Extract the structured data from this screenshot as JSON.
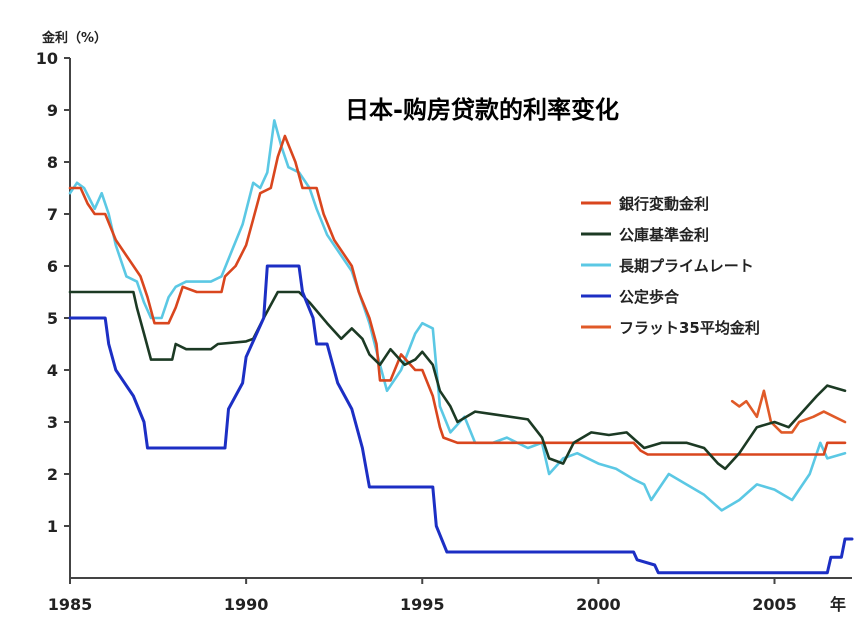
{
  "chart_data": {
    "type": "line",
    "title": "日本-购房贷款的利率变化",
    "ylabel": "金利（%）",
    "xlabel": "年",
    "xlim": [
      1985,
      2007.2
    ],
    "ylim": [
      0,
      10
    ],
    "x_ticks": [
      1985,
      1990,
      1995,
      2000,
      2005
    ],
    "x_tick_labels": [
      "1985",
      "1990",
      "1995",
      "2000",
      "2005"
    ],
    "y_ticks": [
      1,
      2,
      3,
      4,
      5,
      6,
      7,
      8,
      9,
      10
    ],
    "y_tick_labels": [
      "1",
      "2",
      "3",
      "4",
      "5",
      "6",
      "7",
      "8",
      "9",
      "10"
    ],
    "grid": false,
    "legend_position": "right",
    "series": [
      {
        "name": "銀行変動金利",
        "color": "#d9461e",
        "points": [
          [
            1985.0,
            7.5
          ],
          [
            1985.3,
            7.5
          ],
          [
            1985.5,
            7.2
          ],
          [
            1985.7,
            7.0
          ],
          [
            1986.0,
            7.0
          ],
          [
            1986.3,
            6.5
          ],
          [
            1986.6,
            6.2
          ],
          [
            1987.0,
            5.8
          ],
          [
            1987.2,
            5.4
          ],
          [
            1987.4,
            4.9
          ],
          [
            1987.8,
            4.9
          ],
          [
            1988.0,
            5.2
          ],
          [
            1988.2,
            5.6
          ],
          [
            1988.6,
            5.5
          ],
          [
            1989.3,
            5.5
          ],
          [
            1989.4,
            5.8
          ],
          [
            1989.7,
            6.0
          ],
          [
            1990.0,
            6.4
          ],
          [
            1990.2,
            6.9
          ],
          [
            1990.4,
            7.4
          ],
          [
            1990.7,
            7.5
          ],
          [
            1990.9,
            8.1
          ],
          [
            1991.1,
            8.5
          ],
          [
            1991.4,
            8.0
          ],
          [
            1991.6,
            7.5
          ],
          [
            1992.0,
            7.5
          ],
          [
            1992.2,
            7.0
          ],
          [
            1992.5,
            6.5
          ],
          [
            1993.0,
            6.0
          ],
          [
            1993.2,
            5.5
          ],
          [
            1993.5,
            5.0
          ],
          [
            1993.7,
            4.5
          ],
          [
            1993.8,
            3.8
          ],
          [
            1994.1,
            3.8
          ],
          [
            1994.4,
            4.3
          ],
          [
            1994.8,
            4.0
          ],
          [
            1995.0,
            4.0
          ],
          [
            1995.3,
            3.5
          ],
          [
            1995.5,
            2.9
          ],
          [
            1995.6,
            2.7
          ],
          [
            1996.0,
            2.6
          ],
          [
            2001.0,
            2.6
          ],
          [
            2001.2,
            2.45
          ],
          [
            2001.4,
            2.375
          ],
          [
            2006.4,
            2.375
          ],
          [
            2006.5,
            2.6
          ],
          [
            2007.0,
            2.6
          ]
        ]
      },
      {
        "name": "公庫基準金利",
        "color": "#1c3a24",
        "points": [
          [
            1985.0,
            5.5
          ],
          [
            1986.8,
            5.5
          ],
          [
            1986.9,
            5.2
          ],
          [
            1987.1,
            4.7
          ],
          [
            1987.3,
            4.2
          ],
          [
            1987.9,
            4.2
          ],
          [
            1988.0,
            4.5
          ],
          [
            1988.3,
            4.4
          ],
          [
            1989.0,
            4.4
          ],
          [
            1989.2,
            4.5
          ],
          [
            1990.0,
            4.55
          ],
          [
            1990.2,
            4.6
          ],
          [
            1990.5,
            5.0
          ],
          [
            1990.9,
            5.5
          ],
          [
            1991.5,
            5.5
          ],
          [
            1991.8,
            5.3
          ],
          [
            1992.3,
            4.9
          ],
          [
            1992.7,
            4.6
          ],
          [
            1993.0,
            4.8
          ],
          [
            1993.3,
            4.6
          ],
          [
            1993.5,
            4.3
          ],
          [
            1993.8,
            4.1
          ],
          [
            1994.1,
            4.4
          ],
          [
            1994.5,
            4.1
          ],
          [
            1994.8,
            4.2
          ],
          [
            1995.0,
            4.35
          ],
          [
            1995.3,
            4.1
          ],
          [
            1995.5,
            3.6
          ],
          [
            1995.8,
            3.3
          ],
          [
            1996.0,
            3.0
          ],
          [
            1996.5,
            3.2
          ],
          [
            1997.0,
            3.15
          ],
          [
            1998.0,
            3.05
          ],
          [
            1998.4,
            2.7
          ],
          [
            1998.6,
            2.3
          ],
          [
            1999.0,
            2.2
          ],
          [
            1999.3,
            2.6
          ],
          [
            1999.8,
            2.8
          ],
          [
            2000.3,
            2.75
          ],
          [
            2000.8,
            2.8
          ],
          [
            2001.3,
            2.5
          ],
          [
            2001.8,
            2.6
          ],
          [
            2002.5,
            2.6
          ],
          [
            2003.0,
            2.5
          ],
          [
            2003.4,
            2.2
          ],
          [
            2003.6,
            2.1
          ],
          [
            2004.0,
            2.4
          ],
          [
            2004.5,
            2.9
          ],
          [
            2005.0,
            3.0
          ],
          [
            2005.4,
            2.9
          ],
          [
            2005.8,
            3.2
          ],
          [
            2006.2,
            3.5
          ],
          [
            2006.5,
            3.7
          ],
          [
            2007.0,
            3.6
          ]
        ]
      },
      {
        "name": "長期プライムレート",
        "color": "#5bc8e4",
        "points": [
          [
            1985.0,
            7.4
          ],
          [
            1985.2,
            7.6
          ],
          [
            1985.4,
            7.5
          ],
          [
            1985.7,
            7.1
          ],
          [
            1985.9,
            7.4
          ],
          [
            1986.1,
            7.0
          ],
          [
            1986.3,
            6.4
          ],
          [
            1986.6,
            5.8
          ],
          [
            1986.9,
            5.7
          ],
          [
            1987.1,
            5.3
          ],
          [
            1987.3,
            5.0
          ],
          [
            1987.6,
            5.0
          ],
          [
            1987.8,
            5.4
          ],
          [
            1988.0,
            5.6
          ],
          [
            1988.3,
            5.7
          ],
          [
            1989.0,
            5.7
          ],
          [
            1989.3,
            5.8
          ],
          [
            1989.6,
            6.3
          ],
          [
            1989.9,
            6.8
          ],
          [
            1990.2,
            7.6
          ],
          [
            1990.4,
            7.5
          ],
          [
            1990.6,
            7.8
          ],
          [
            1990.8,
            8.8
          ],
          [
            1991.0,
            8.3
          ],
          [
            1991.2,
            7.9
          ],
          [
            1991.5,
            7.8
          ],
          [
            1991.8,
            7.5
          ],
          [
            1992.0,
            7.1
          ],
          [
            1992.3,
            6.6
          ],
          [
            1992.6,
            6.3
          ],
          [
            1993.0,
            5.9
          ],
          [
            1993.2,
            5.5
          ],
          [
            1993.5,
            4.9
          ],
          [
            1993.8,
            4.1
          ],
          [
            1994.0,
            3.6
          ],
          [
            1994.4,
            4.0
          ],
          [
            1994.8,
            4.7
          ],
          [
            1995.0,
            4.9
          ],
          [
            1995.3,
            4.8
          ],
          [
            1995.5,
            3.3
          ],
          [
            1995.8,
            2.8
          ],
          [
            1996.2,
            3.1
          ],
          [
            1996.5,
            2.6
          ],
          [
            1997.0,
            2.6
          ],
          [
            1997.4,
            2.7
          ],
          [
            1998.0,
            2.5
          ],
          [
            1998.4,
            2.6
          ],
          [
            1998.6,
            2.0
          ],
          [
            1999.0,
            2.3
          ],
          [
            1999.4,
            2.4
          ],
          [
            2000.0,
            2.2
          ],
          [
            2000.5,
            2.1
          ],
          [
            2001.0,
            1.9
          ],
          [
            2001.3,
            1.8
          ],
          [
            2001.5,
            1.5
          ],
          [
            2002.0,
            2.0
          ],
          [
            2002.5,
            1.8
          ],
          [
            2003.0,
            1.6
          ],
          [
            2003.5,
            1.3
          ],
          [
            2004.0,
            1.5
          ],
          [
            2004.5,
            1.8
          ],
          [
            2005.0,
            1.7
          ],
          [
            2005.5,
            1.5
          ],
          [
            2006.0,
            2.0
          ],
          [
            2006.3,
            2.6
          ],
          [
            2006.5,
            2.3
          ],
          [
            2007.0,
            2.4
          ]
        ]
      },
      {
        "name": "公定歩合",
        "color": "#1c2fc4",
        "points": [
          [
            1985.0,
            5.0
          ],
          [
            1986.0,
            5.0
          ],
          [
            1986.1,
            4.5
          ],
          [
            1986.3,
            4.0
          ],
          [
            1986.8,
            3.5
          ],
          [
            1987.1,
            3.0
          ],
          [
            1987.2,
            2.5
          ],
          [
            1989.4,
            2.5
          ],
          [
            1989.5,
            3.25
          ],
          [
            1989.9,
            3.75
          ],
          [
            1990.0,
            4.25
          ],
          [
            1990.5,
            5.0
          ],
          [
            1990.6,
            6.0
          ],
          [
            1991.5,
            6.0
          ],
          [
            1991.6,
            5.5
          ],
          [
            1991.9,
            5.0
          ],
          [
            1992.0,
            4.5
          ],
          [
            1992.3,
            4.5
          ],
          [
            1992.6,
            3.75
          ],
          [
            1993.0,
            3.25
          ],
          [
            1993.3,
            2.5
          ],
          [
            1993.5,
            1.75
          ],
          [
            1995.3,
            1.75
          ],
          [
            1995.4,
            1.0
          ],
          [
            1995.7,
            0.5
          ],
          [
            2001.0,
            0.5
          ],
          [
            2001.1,
            0.35
          ],
          [
            2001.6,
            0.25
          ],
          [
            2001.7,
            0.1
          ],
          [
            2006.5,
            0.1
          ],
          [
            2006.6,
            0.4
          ],
          [
            2006.9,
            0.4
          ],
          [
            2007.0,
            0.75
          ],
          [
            2007.2,
            0.75
          ]
        ]
      },
      {
        "name": "フラット35平均金利",
        "color": "#e05a28",
        "points": [
          [
            2003.8,
            3.4
          ],
          [
            2004.0,
            3.3
          ],
          [
            2004.2,
            3.4
          ],
          [
            2004.5,
            3.1
          ],
          [
            2004.7,
            3.6
          ],
          [
            2004.9,
            3.0
          ],
          [
            2005.2,
            2.8
          ],
          [
            2005.5,
            2.8
          ],
          [
            2005.7,
            3.0
          ],
          [
            2006.1,
            3.1
          ],
          [
            2006.4,
            3.2
          ],
          [
            2006.7,
            3.1
          ],
          [
            2007.0,
            3.0
          ]
        ]
      }
    ]
  }
}
